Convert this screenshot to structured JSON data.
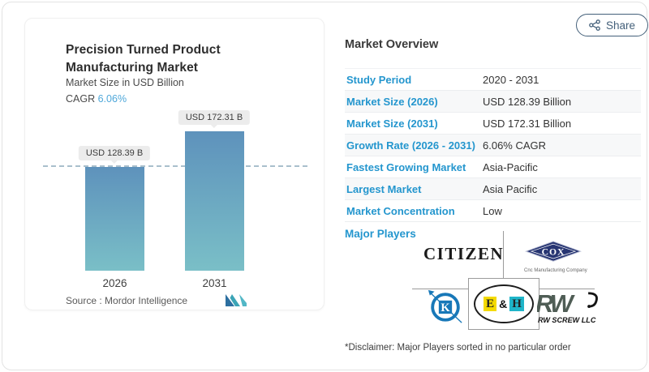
{
  "share": {
    "label": "Share"
  },
  "chart_card": {
    "title": "Precision Turned Product Manufacturing Market",
    "subtitle": "Market Size in USD Billion",
    "cagr_label": "CAGR",
    "cagr_value": "6.06%",
    "source_label": "Source :",
    "source_value": "Mordor Intelligence"
  },
  "chart_data": {
    "type": "bar",
    "title": "Precision Turned Product Manufacturing Market",
    "ylabel": "Market Size in USD Billion",
    "categories": [
      "2026",
      "2031"
    ],
    "values": [
      128.39,
      172.31
    ],
    "value_labels": [
      "USD 128.39 B",
      "USD 172.31 B"
    ],
    "reference_line_at": 128.39,
    "grid": false,
    "legend": false
  },
  "overview": {
    "heading": "Market Overview",
    "rows": [
      {
        "label": "Study Period",
        "value": "2020 - 2031"
      },
      {
        "label": "Market Size (2026)",
        "value": "USD 128.39 Billion"
      },
      {
        "label": "Market Size (2031)",
        "value": "USD 172.31 Billion"
      },
      {
        "label": "Growth Rate (2026 - 2031)",
        "value": "6.06% CAGR"
      },
      {
        "label": "Fastest Growing Market",
        "value": "Asia-Pacific"
      },
      {
        "label": "Largest Market",
        "value": "Asia Pacific"
      },
      {
        "label": "Market Concentration",
        "value": "Low"
      }
    ],
    "major_players_label": "Major Players",
    "players": [
      {
        "name": "citizen",
        "text": "CITIZEN"
      },
      {
        "name": "cox",
        "text": "COX",
        "tagline": "Cnc Manufacturing Company"
      },
      {
        "name": "k",
        "text": "K"
      },
      {
        "name": "eh",
        "letters": [
          "E",
          "&",
          "H"
        ]
      },
      {
        "name": "rw",
        "text": "RW",
        "subtext": "RW SCREW LLC"
      }
    ],
    "disclaimer": "*Disclaimer: Major Players sorted in no particular order"
  },
  "colors": {
    "accent_blue": "#2496ce",
    "cagr_blue": "#4fa8da",
    "share_blue": "#44607a",
    "bar_gradient_top": "#5e92bc",
    "bar_gradient_bottom": "#7abfc7",
    "dashed_line": "#a9bfcc"
  }
}
